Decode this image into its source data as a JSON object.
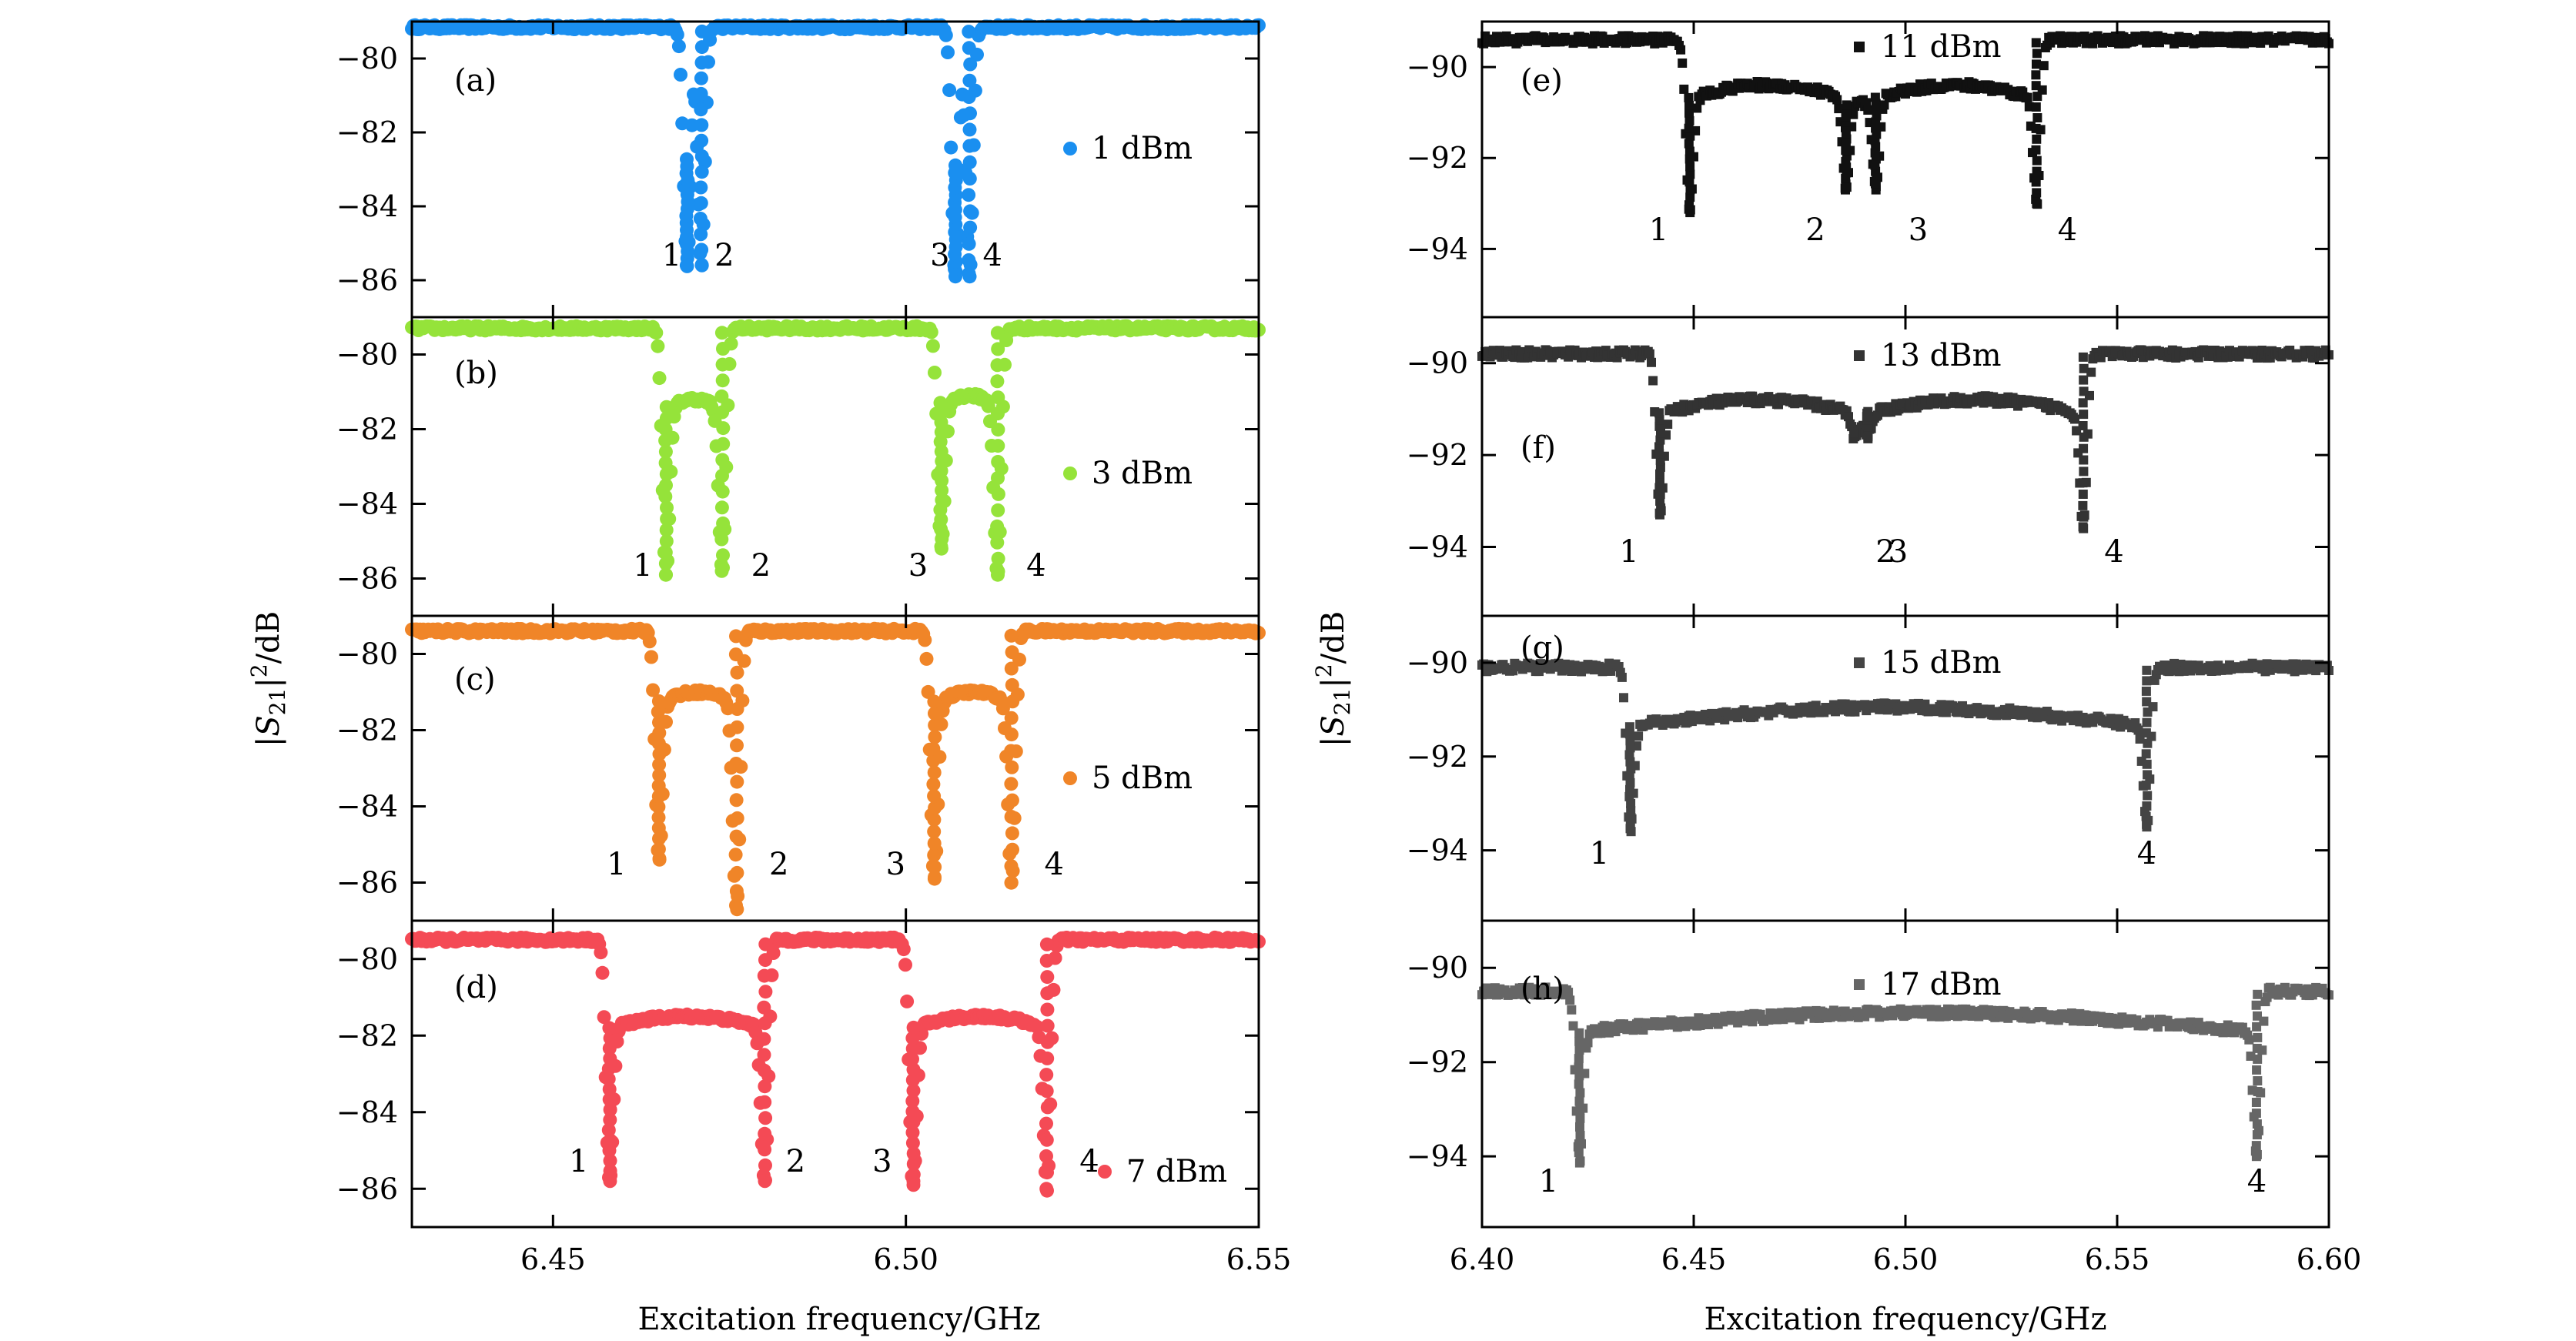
{
  "chart_data": [
    {
      "id": "a",
      "panel_label": "(a)",
      "power": "1 dBm",
      "color": "#1a8ff0",
      "marker": "circle",
      "xlim": [
        6.43,
        6.55
      ],
      "ylim": [
        -87,
        -79
      ],
      "yticks": [
        -80,
        -82,
        -84,
        -86
      ],
      "xticks": [],
      "baseline": -79.15,
      "dips": [
        {
          "label": "1",
          "x": 6.469,
          "depth": -85.6
        },
        {
          "label": "2",
          "x": 6.471,
          "depth": -85.6
        },
        {
          "label": "3",
          "x": 6.507,
          "depth": -85.9
        },
        {
          "label": "4",
          "x": 6.509,
          "depth": -85.9
        }
      ],
      "humps": []
    },
    {
      "id": "b",
      "panel_label": "(b)",
      "power": "3 dBm",
      "color": "#95e33a",
      "marker": "circle",
      "xlim": [
        6.43,
        6.55
      ],
      "ylim": [
        -87,
        -79
      ],
      "yticks": [
        -80,
        -82,
        -84,
        -86
      ],
      "xticks": [],
      "baseline": -79.3,
      "dips": [
        {
          "label": "1",
          "x": 6.466,
          "depth": -85.9
        },
        {
          "label": "2",
          "x": 6.474,
          "depth": -85.8
        },
        {
          "label": "3",
          "x": 6.505,
          "depth": -85.2
        },
        {
          "label": "4",
          "x": 6.513,
          "depth": -85.9
        }
      ],
      "humps": [
        {
          "x": 6.47,
          "level": -81.2
        },
        {
          "x": 6.509,
          "level": -81.1
        }
      ]
    },
    {
      "id": "c",
      "panel_label": "(c)",
      "power": "5 dBm",
      "color": "#f08528",
      "marker": "circle",
      "xlim": [
        6.43,
        6.55
      ],
      "ylim": [
        -87,
        -79
      ],
      "yticks": [
        -80,
        -82,
        -84,
        -86
      ],
      "xticks": [],
      "baseline": -79.4,
      "dips": [
        {
          "label": "1",
          "x": 6.465,
          "depth": -85.4
        },
        {
          "label": "2",
          "x": 6.476,
          "depth": -86.7
        },
        {
          "label": "3",
          "x": 6.504,
          "depth": -85.9
        },
        {
          "label": "4",
          "x": 6.515,
          "depth": -86.0
        }
      ],
      "humps": [
        {
          "x": 6.47,
          "level": -81.0
        },
        {
          "x": 6.509,
          "level": -81.0
        }
      ]
    },
    {
      "id": "d",
      "panel_label": "(d)",
      "power": "7 dBm",
      "color": "#f44a55",
      "marker": "circle",
      "xlim": [
        6.43,
        6.55
      ],
      "ylim": [
        -87,
        -79
      ],
      "yticks": [
        -80,
        -82,
        -84,
        -86
      ],
      "xticks": [
        6.45,
        6.5,
        6.55
      ],
      "baseline": -79.5,
      "dips": [
        {
          "label": "1",
          "x": 6.458,
          "depth": -85.8
        },
        {
          "label": "2",
          "x": 6.48,
          "depth": -85.8
        },
        {
          "label": "3",
          "x": 6.501,
          "depth": -85.9
        },
        {
          "label": "4",
          "x": 6.52,
          "depth": -86.0
        }
      ],
      "humps": [
        {
          "x": 6.469,
          "level": -81.5
        },
        {
          "x": 6.51,
          "level": -81.5
        }
      ]
    },
    {
      "id": "e",
      "panel_label": "(e)",
      "power": "11 dBm",
      "color": "#111111",
      "marker": "square",
      "xlim": [
        6.4,
        6.6
      ],
      "ylim": [
        -95.5,
        -89
      ],
      "yticks": [
        -90,
        -92,
        -94
      ],
      "xticks": [],
      "baseline": -89.4,
      "dips": [
        {
          "label": "1",
          "x": 6.449,
          "depth": -93.2
        },
        {
          "label": "2",
          "x": 6.486,
          "depth": -92.7
        },
        {
          "label": "3",
          "x": 6.493,
          "depth": -92.7
        },
        {
          "label": "4",
          "x": 6.531,
          "depth": -93.0
        }
      ],
      "humps": [
        {
          "x": 6.467,
          "level": -90.4
        },
        {
          "x": 6.51,
          "level": -90.4
        }
      ]
    },
    {
      "id": "f",
      "panel_label": "(f)",
      "power": "13 dBm",
      "color": "#333333",
      "marker": "square",
      "xlim": [
        6.4,
        6.6
      ],
      "ylim": [
        -95.5,
        -89
      ],
      "yticks": [
        -90,
        -92,
        -94
      ],
      "xticks": [],
      "baseline": -89.8,
      "dips": [
        {
          "label": "1",
          "x": 6.442,
          "depth": -93.3
        },
        {
          "label": "2",
          "x": 6.488,
          "depth": -91.6
        },
        {
          "label": "3",
          "x": 6.491,
          "depth": -91.6
        },
        {
          "label": "4",
          "x": 6.542,
          "depth": -93.6
        }
      ],
      "humps": [
        {
          "x": 6.465,
          "level": -90.8
        },
        {
          "x": 6.512,
          "level": -90.8
        }
      ]
    },
    {
      "id": "g",
      "panel_label": "(g)",
      "power": "15 dBm",
      "color": "#444444",
      "marker": "square",
      "xlim": [
        6.4,
        6.6
      ],
      "ylim": [
        -95.5,
        -89
      ],
      "yticks": [
        -90,
        -92,
        -94
      ],
      "xticks": [],
      "baseline": -90.1,
      "dips": [
        {
          "label": "1",
          "x": 6.435,
          "depth": -93.6
        },
        {
          "label": "4",
          "x": 6.557,
          "depth": -93.5
        }
      ],
      "humps": [
        {
          "x": 6.47,
          "level": -90.9
        },
        {
          "x": 6.508,
          "level": -90.9
        }
      ]
    },
    {
      "id": "h",
      "panel_label": "(h)",
      "power": "17 dBm",
      "color": "#666666",
      "marker": "square",
      "xlim": [
        6.4,
        6.6
      ],
      "ylim": [
        -95.5,
        -89
      ],
      "yticks": [
        -90,
        -92,
        -94
      ],
      "xticks": [
        6.4,
        6.45,
        6.5,
        6.55,
        6.6
      ],
      "baseline": -90.5,
      "dips": [
        {
          "label": "1",
          "x": 6.423,
          "depth": -94.1
        },
        {
          "label": "4",
          "x": 6.583,
          "depth": -94.0
        }
      ],
      "humps": [
        {
          "x": 6.47,
          "level": -90.9
        },
        {
          "x": 6.51,
          "level": -90.9
        }
      ]
    }
  ],
  "axes": {
    "left_xlabel": "Excitation frequency/GHz",
    "right_xlabel": "Excitation frequency/GHz",
    "ylabel_prefix": "|",
    "ylabel_symbol": "S",
    "ylabel_subscript": "21",
    "ylabel_sup": "2",
    "ylabel_suffix": "|",
    "ylabel_unit": "/dB",
    "tick_minus": "−"
  }
}
